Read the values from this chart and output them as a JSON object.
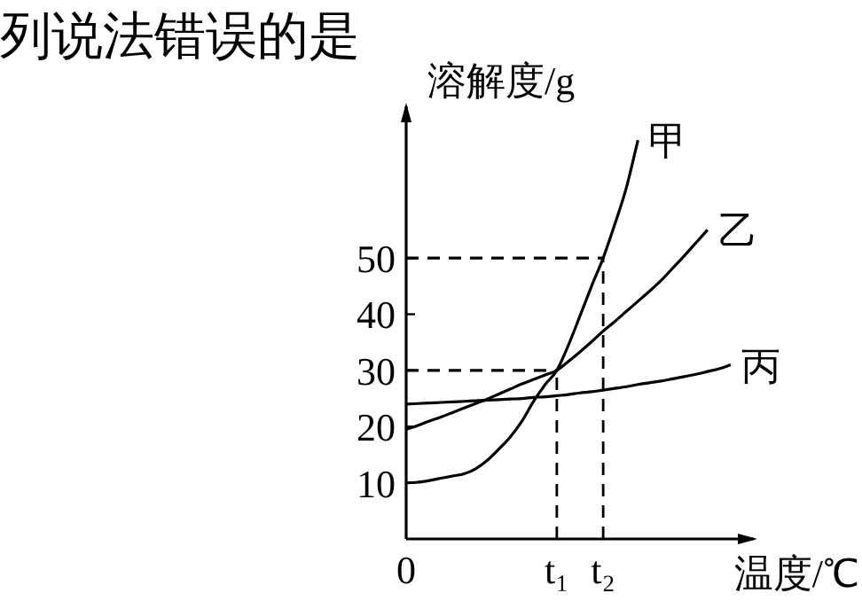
{
  "chart_data": {
    "type": "line",
    "title": "列说法错误的是",
    "xlabel": "温度/℃",
    "ylabel": "溶解度/g",
    "categories": [
      "0",
      null,
      null,
      null,
      null,
      null,
      null,
      null,
      null,
      null,
      null,
      null,
      null,
      "t₁",
      null,
      null,
      null,
      "t₂",
      null,
      null,
      null,
      null,
      null,
      null,
      null,
      null,
      null,
      null,
      null,
      null
    ],
    "ylim": [
      0,
      77
    ],
    "yticks": [
      10,
      20,
      30,
      40,
      50
    ],
    "series": [
      {
        "name": "甲",
        "color": "#000000",
        "values": [
          10,
          10.1,
          10.4,
          10.8,
          11.2,
          11.6,
          12.5,
          14,
          16,
          18.2,
          21,
          24.5,
          27.5,
          30,
          34.5,
          39.7,
          45,
          50,
          56,
          62.5,
          71,
          null,
          null,
          null,
          null,
          null,
          null,
          null,
          null,
          null
        ]
      },
      {
        "name": "乙",
        "color": "#000000",
        "values": [
          19.5,
          20.2,
          21,
          21.7,
          22.5,
          23.3,
          24.1,
          24.9,
          25.8,
          26.7,
          27.6,
          28.4,
          29.2,
          30,
          31.6,
          33.3,
          35.1,
          37,
          38.7,
          40.5,
          42.3,
          44.1,
          46,
          48.2,
          50.4,
          52.7,
          55,
          null,
          null,
          null
        ]
      },
      {
        "name": "丙",
        "color": "#000000",
        "values": [
          24,
          24.1,
          24.2,
          24.3,
          24.4,
          24.5,
          24.6,
          24.7,
          24.8,
          24.9,
          25,
          25.2,
          25.3,
          25.5,
          25.7,
          26,
          26.2,
          26.5,
          26.8,
          27.1,
          27.5,
          27.8,
          28.1,
          28.5,
          28.9,
          29.3,
          29.8,
          30.3,
          31,
          null
        ]
      },
      {
        "color": "#000000",
        "line_style": "dashed",
        "values": [
          30,
          30,
          30,
          30,
          30,
          30,
          30,
          30,
          30,
          30,
          30,
          30,
          30,
          30,
          null,
          null,
          null,
          null,
          null,
          null,
          null,
          null,
          null,
          null,
          null,
          null,
          null,
          null,
          null,
          null
        ]
      },
      {
        "color": "#000000",
        "line_style": "dashed",
        "values": [
          50,
          50,
          50,
          50,
          50,
          50,
          50,
          50,
          50,
          50,
          50,
          50,
          50,
          50,
          50,
          50,
          50,
          50,
          null,
          null,
          null,
          null,
          null,
          null,
          null,
          null,
          null,
          null,
          null,
          null
        ]
      }
    ],
    "ref_lines": [
      {
        "axis": "x",
        "value": "t₁",
        "line_style": "dashed"
      },
      {
        "axis": "x",
        "value": "t₂",
        "line_style": "dashed"
      }
    ]
  }
}
